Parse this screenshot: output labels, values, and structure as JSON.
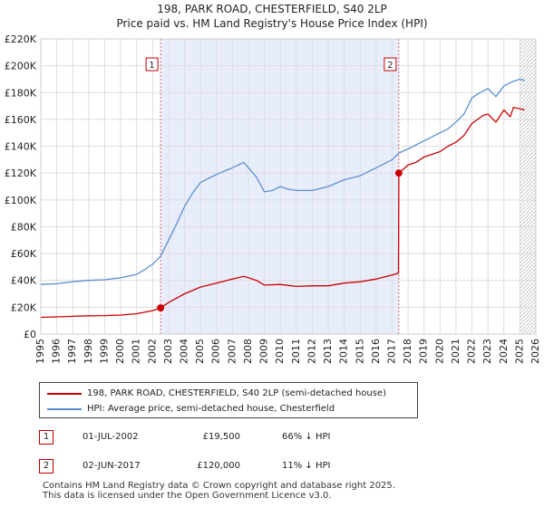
{
  "header": {
    "title_line1": "198, PARK ROAD, CHESTERFIELD, S40 2LP",
    "title_line2": "Price paid vs. HM Land Registry's House Price Index (HPI)"
  },
  "legend": {
    "property_label": "198, PARK ROAD, CHESTERFIELD, S40 2LP (semi-detached house)",
    "hpi_label": "HPI: Average price, semi-detached house, Chesterfield",
    "property_color": "#cc0000",
    "hpi_color": "#5b8fd0"
  },
  "sales": [
    {
      "marker": "1",
      "date": "01-JUL-2002",
      "price": "£19,500",
      "hpi_diff": "66% ↓ HPI"
    },
    {
      "marker": "2",
      "date": "02-JUN-2017",
      "price": "£120,000",
      "hpi_diff": "11% ↓ HPI"
    }
  ],
  "footer": {
    "line1": "Contains HM Land Registry data © Crown copyright and database right 2025.",
    "line2": "This data is licensed under the Open Government Licence v3.0."
  },
  "chart_data": {
    "type": "line",
    "title": "198, PARK ROAD, CHESTERFIELD, S40 2LP",
    "subtitle": "Price paid vs. HM Land Registry's House Price Index (HPI)",
    "xlabel": "",
    "ylabel": "",
    "xlim": [
      1995,
      2026
    ],
    "ylim": [
      0,
      220000
    ],
    "x_ticks": [
      1995,
      1996,
      1997,
      1998,
      1999,
      2000,
      2001,
      2002,
      2003,
      2004,
      2005,
      2006,
      2007,
      2008,
      2009,
      2010,
      2011,
      2012,
      2013,
      2014,
      2015,
      2016,
      2017,
      2018,
      2019,
      2020,
      2021,
      2022,
      2023,
      2024,
      2025,
      2026
    ],
    "y_ticks": [
      0,
      20000,
      40000,
      60000,
      80000,
      100000,
      120000,
      140000,
      160000,
      180000,
      200000,
      220000
    ],
    "y_tick_labels": [
      "£0",
      "£20K",
      "£40K",
      "£60K",
      "£80K",
      "£100K",
      "£120K",
      "£140K",
      "£160K",
      "£180K",
      "£200K",
      "£220K"
    ],
    "grid": true,
    "shaded_period": [
      2002.5,
      2017.42
    ],
    "future_hatch_from": 2025.0,
    "series": [
      {
        "name": "198, PARK ROAD, CHESTERFIELD, S40 2LP (semi-detached house)",
        "color": "#cc0000",
        "x": [
          1995,
          1996,
          1997,
          1998,
          1999,
          2000,
          2001,
          2002,
          2002.5,
          2003,
          2004,
          2005,
          2006,
          2007,
          2007.7,
          2008,
          2008.5,
          2009,
          2010,
          2011,
          2012,
          2013,
          2014,
          2015,
          2016,
          2017,
          2017.4,
          2017.42,
          2018,
          2018.5,
          2019,
          2020,
          2020.5,
          2021,
          2021.5,
          2022,
          2022.7,
          2023,
          2023.5,
          2024,
          2024.4,
          2024.6,
          2025,
          2025.3
        ],
        "values": [
          12500,
          12800,
          13200,
          13600,
          13800,
          14200,
          15200,
          17500,
          19500,
          23500,
          30000,
          35000,
          38000,
          41000,
          43000,
          42000,
          40000,
          36500,
          37000,
          35500,
          36000,
          36000,
          38000,
          39000,
          41000,
          44000,
          45500,
          120000,
          126000,
          128000,
          132000,
          136000,
          140000,
          143000,
          148000,
          157000,
          163000,
          164000,
          158000,
          167000,
          162000,
          169000,
          168000,
          167000
        ]
      },
      {
        "name": "HPI: Average price, semi-detached house, Chesterfield",
        "color": "#5b8fd0",
        "x": [
          1995,
          1996,
          1997,
          1998,
          1999,
          2000,
          2001,
          2001.5,
          2002,
          2002.5,
          2003,
          2003.5,
          2004,
          2004.5,
          2005,
          2006,
          2007,
          2007.7,
          2008,
          2008.5,
          2009,
          2009.5,
          2010,
          2010.5,
          2011,
          2012,
          2013,
          2014,
          2015,
          2016,
          2017,
          2017.42,
          2018,
          2019,
          2020,
          2020.5,
          2021,
          2021.5,
          2022,
          2022.5,
          2023,
          2023.5,
          2024,
          2024.5,
          2025,
          2025.3
        ],
        "values": [
          37000,
          37500,
          39000,
          40000,
          40500,
          42000,
          44500,
          48000,
          52000,
          58000,
          70000,
          82000,
          95000,
          105000,
          113000,
          119000,
          124000,
          128000,
          124000,
          117000,
          106000,
          107000,
          110000,
          108000,
          107000,
          107000,
          110000,
          115000,
          118000,
          124000,
          130000,
          135000,
          138000,
          144000,
          150000,
          153000,
          158000,
          164000,
          176000,
          180000,
          183000,
          177000,
          185000,
          188000,
          190000,
          189000
        ]
      }
    ],
    "annotations": [
      {
        "label": "1",
        "x": 2002.5,
        "value": 19500
      },
      {
        "label": "2",
        "x": 2017.42,
        "value": 120000
      }
    ]
  }
}
